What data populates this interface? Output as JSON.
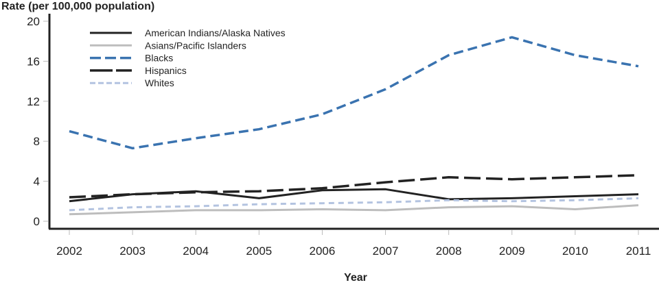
{
  "chart_data": {
    "type": "line",
    "title": "",
    "ylabel": "Rate (per 100,000 population)",
    "xlabel": "Year",
    "x": [
      "2002",
      "2003",
      "2004",
      "2005",
      "2006",
      "2007",
      "2008",
      "2009",
      "2010",
      "2011"
    ],
    "ylim": [
      0,
      20
    ],
    "yticks": [
      0,
      4,
      8,
      12,
      16,
      20
    ],
    "grid": false,
    "legend_position": "upper-left-inside",
    "series": [
      {
        "name": "American Indians/Alaska Natives",
        "style": "solid",
        "color": "#222222",
        "values": [
          2.0,
          2.7,
          3.0,
          2.3,
          3.1,
          3.2,
          2.2,
          2.3,
          2.5,
          2.7
        ]
      },
      {
        "name": "Asians/Pacific Islanders",
        "style": "solid",
        "color": "#bdbdbd",
        "values": [
          0.7,
          0.9,
          1.1,
          1.1,
          1.2,
          1.1,
          1.4,
          1.5,
          1.2,
          1.6
        ]
      },
      {
        "name": "Blacks",
        "style": "dashed",
        "color": "#3a73b0",
        "values": [
          9.0,
          7.3,
          8.3,
          9.2,
          10.7,
          13.2,
          16.6,
          18.4,
          16.6,
          15.5
        ]
      },
      {
        "name": "Hispanics",
        "style": "long-dash",
        "color": "#222222",
        "values": [
          2.4,
          2.7,
          2.9,
          3.0,
          3.3,
          3.9,
          4.4,
          4.2,
          4.4,
          4.6
        ]
      },
      {
        "name": "Whites",
        "style": "short-dash",
        "color": "#b3c3e0",
        "values": [
          1.1,
          1.4,
          1.5,
          1.7,
          1.8,
          1.9,
          2.1,
          2.0,
          2.1,
          2.3
        ]
      }
    ]
  },
  "axes": {
    "ylabel": "Rate (per 100,000 population)",
    "xlabel": "Year"
  }
}
